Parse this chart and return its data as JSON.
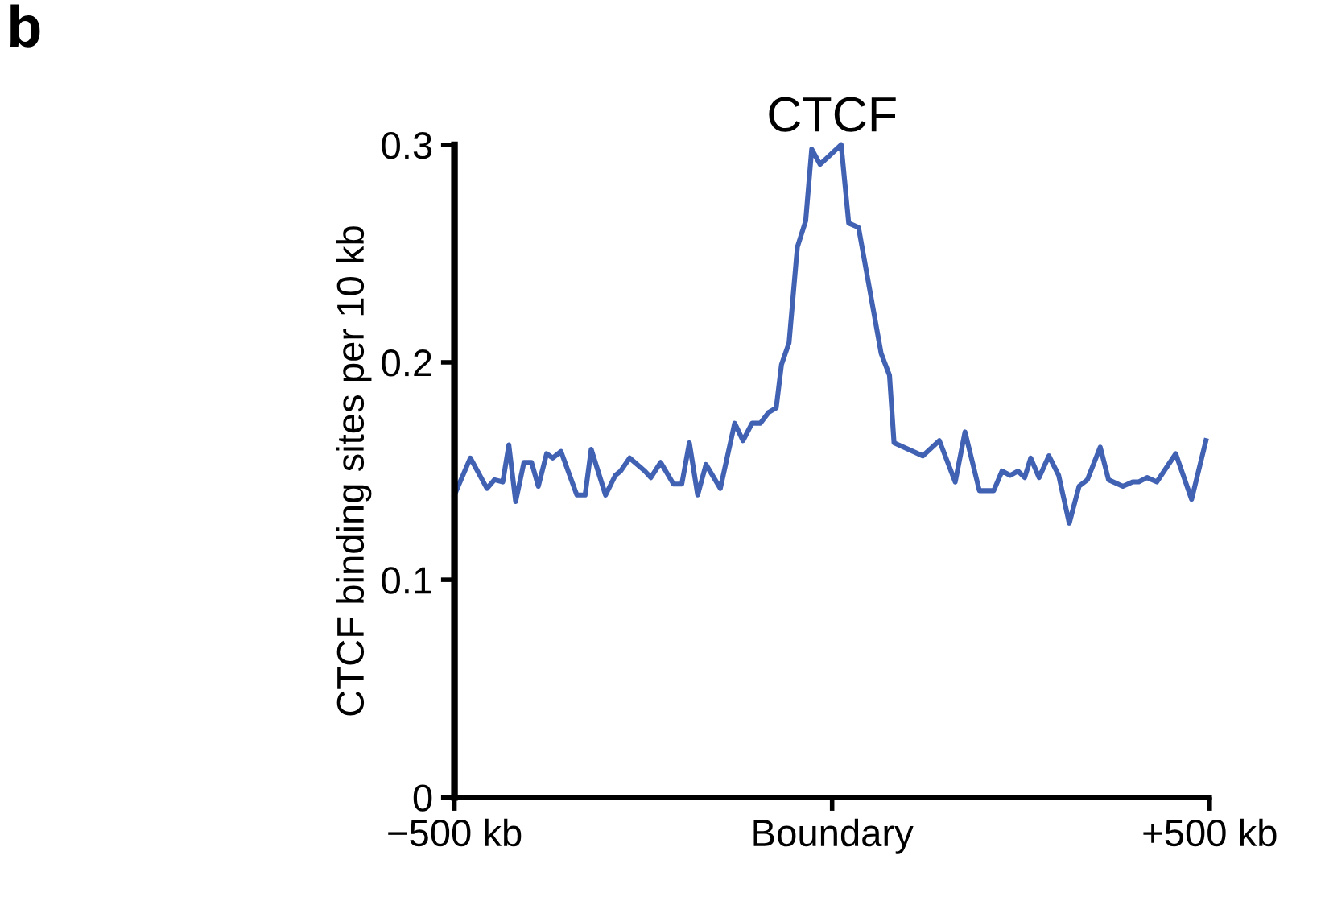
{
  "chart_data": {
    "type": "line",
    "title": "CTCF",
    "ylabel": "CTCF binding sites per 10 kb",
    "annotations": [
      "b"
    ],
    "xlim": [
      -500,
      500
    ],
    "xticks": [
      {
        "value": -500,
        "label": "−500 kb"
      },
      {
        "value": 0,
        "label": "Boundary"
      },
      {
        "value": 500,
        "label": "+500 kb"
      }
    ],
    "ylim": [
      0,
      0.3
    ],
    "yticks": [
      0,
      0.1,
      0.2,
      0.3
    ],
    "grid": false,
    "legend": false,
    "marker": "none",
    "line_style": "solid",
    "series": [
      {
        "color": "#4161b3",
        "x": [
          -500,
          -479,
          -457,
          -447,
          -436,
          -428,
          -419,
          -408,
          -398,
          -389,
          -378,
          -370,
          -359,
          -338,
          -327,
          -319,
          -300,
          -287,
          -280,
          -268,
          -248,
          -240,
          -227,
          -210,
          -199,
          -189,
          -178,
          -167,
          -148,
          -129,
          -118,
          -106,
          -95,
          -84,
          -74,
          -67,
          -57,
          -46,
          -35,
          -27,
          -16,
          12,
          22,
          35,
          65,
          76,
          82,
          120,
          142,
          163,
          176,
          195,
          214,
          225,
          236,
          246,
          255,
          263,
          274,
          287,
          300,
          314,
          327,
          338,
          355,
          366,
          385,
          398,
          406,
          417,
          430,
          455,
          476,
          495
        ],
        "values": [
          0.139,
          0.156,
          0.142,
          0.146,
          0.145,
          0.162,
          0.136,
          0.154,
          0.154,
          0.143,
          0.158,
          0.156,
          0.159,
          0.139,
          0.139,
          0.16,
          0.139,
          0.148,
          0.15,
          0.156,
          0.15,
          0.147,
          0.154,
          0.144,
          0.144,
          0.163,
          0.139,
          0.153,
          0.142,
          0.172,
          0.164,
          0.172,
          0.172,
          0.177,
          0.179,
          0.199,
          0.209,
          0.253,
          0.265,
          0.298,
          0.291,
          0.3,
          0.264,
          0.262,
          0.204,
          0.194,
          0.163,
          0.157,
          0.164,
          0.145,
          0.168,
          0.141,
          0.141,
          0.15,
          0.148,
          0.15,
          0.147,
          0.156,
          0.147,
          0.157,
          0.148,
          0.126,
          0.143,
          0.146,
          0.161,
          0.146,
          0.143,
          0.145,
          0.145,
          0.147,
          0.145,
          0.158,
          0.137,
          0.164
        ]
      }
    ]
  }
}
